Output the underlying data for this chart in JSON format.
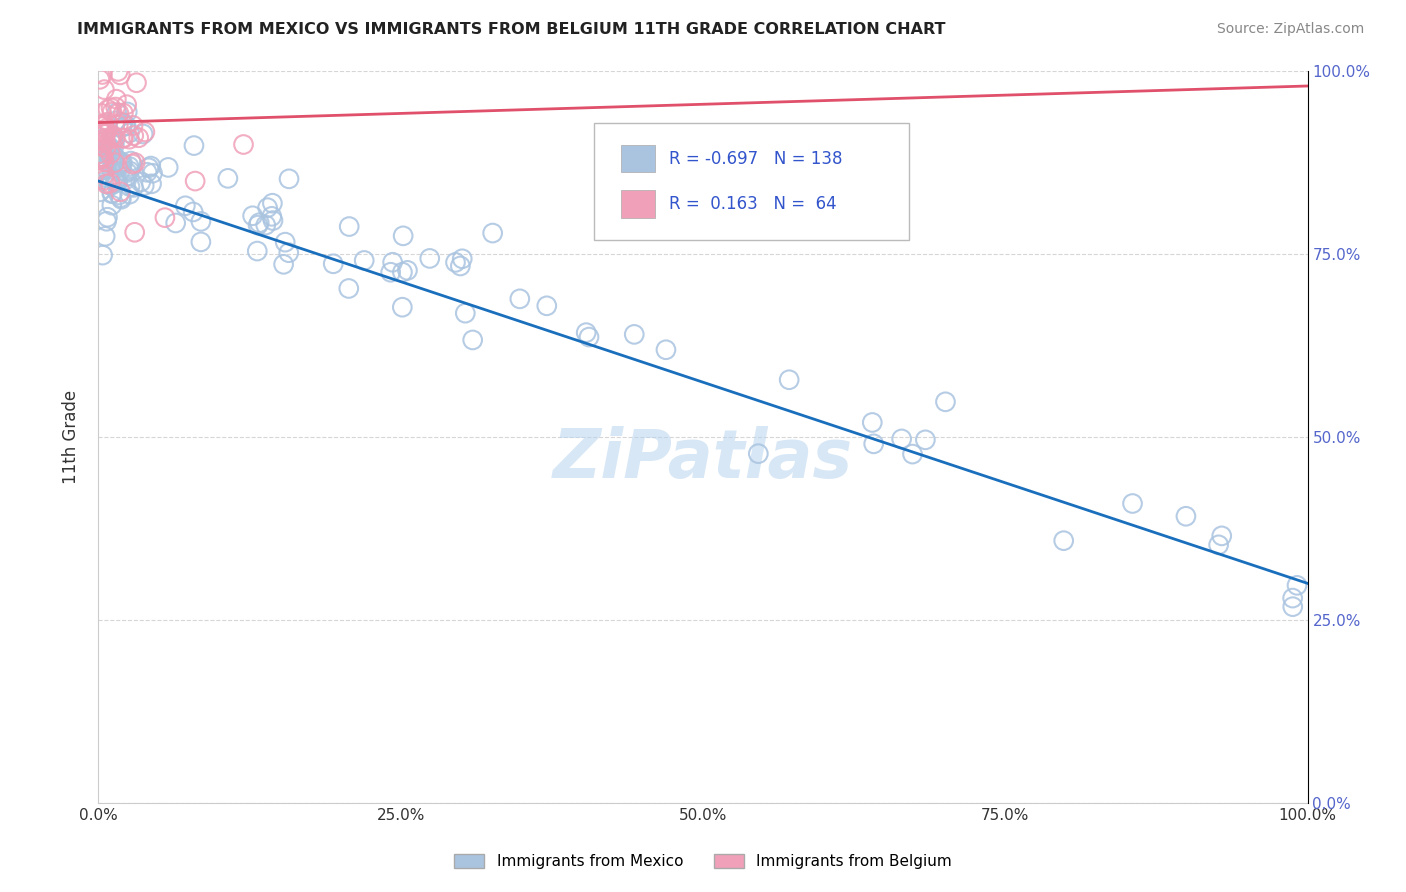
{
  "title": "IMMIGRANTS FROM MEXICO VS IMMIGRANTS FROM BELGIUM 11TH GRADE CORRELATION CHART",
  "source": "Source: ZipAtlas.com",
  "ylabel": "11th Grade",
  "x_tick_labels": [
    "0.0%",
    "25.0%",
    "50.0%",
    "75.0%",
    "100.0%"
  ],
  "x_tick_vals": [
    0,
    25,
    50,
    75,
    100
  ],
  "y_tick_labels_left": [
    "",
    "25.0%",
    "50.0%",
    "75.0%",
    "100.0%"
  ],
  "y_tick_labels_right": [
    "0.0%",
    "25.0%",
    "50.0%",
    "75.0%",
    "100.0%"
  ],
  "y_tick_vals": [
    0,
    25,
    50,
    75,
    100
  ],
  "legend_label_blue": "Immigrants from Mexico",
  "legend_label_pink": "Immigrants from Belgium",
  "R_blue": -0.697,
  "N_blue": 138,
  "R_pink": 0.163,
  "N_pink": 64,
  "blue_color": "#aac4e0",
  "pink_color": "#f0a0b8",
  "blue_line_color": "#1a6fbd",
  "pink_line_color": "#e0506a",
  "watermark": "ZiPatlas",
  "background_color": "#ffffff",
  "grid_color": "#cccccc",
  "xlim": [
    0,
    100
  ],
  "ylim": [
    0,
    100
  ],
  "legend_text_color": "#3355cc",
  "right_axis_color": "#5566cc"
}
